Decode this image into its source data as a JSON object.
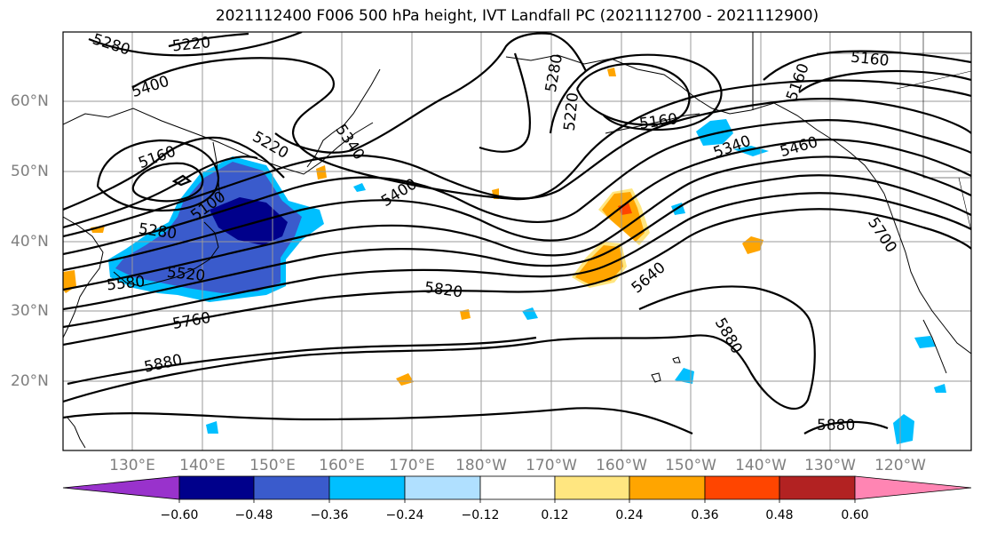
{
  "title": "2021112400 F006 500 hPa height, IVT Landfall PC (2021112700 - 2021112900)",
  "lat_labels": [
    "60°N",
    "50°N",
    "40°N",
    "30°N",
    "20°N"
  ],
  "lon_labels": [
    "130°E",
    "140°E",
    "150°E",
    "160°E",
    "170°E",
    "180°W",
    "170°W",
    "160°W",
    "150°W",
    "140°W",
    "130°W",
    "120°W"
  ],
  "contour_labels": [
    "5280",
    "5220",
    "5400",
    "5160",
    "5220",
    "5340",
    "5400",
    "5100",
    "5280",
    "5520",
    "5580",
    "5760",
    "5820",
    "5880",
    "5280",
    "5220",
    "5160",
    "5340",
    "5460",
    "5160",
    "5160",
    "5700",
    "5640",
    "5880",
    "5880"
  ],
  "colorbar": {
    "ticks": [
      "−0.60",
      "−0.48",
      "−0.36",
      "−0.24",
      "−0.12",
      "0.12",
      "0.24",
      "0.36",
      "0.48",
      "0.60"
    ],
    "colors": [
      "#9932cc",
      "#00008b",
      "#3a5bcc",
      "#00bfff",
      "#b0e0ff",
      "#ffffff",
      "#ffe680",
      "#ffa500",
      "#ff4500",
      "#b22222",
      "#ff85b3"
    ]
  }
}
